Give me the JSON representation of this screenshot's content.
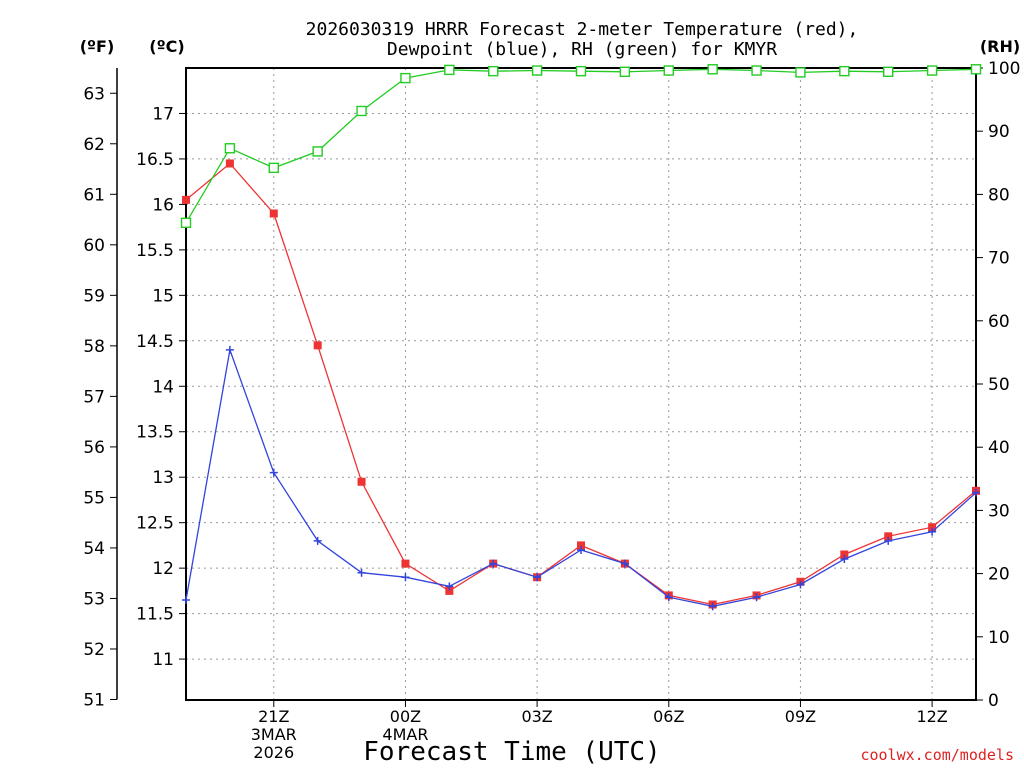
{
  "chart_data": {
    "type": "line",
    "title_lines": [
      "2026030319 HRRR Forecast 2-meter Temperature (red),",
      "Dewpoint (blue), RH (green) for KMYR"
    ],
    "xlabel": "Forecast Time (UTC)",
    "left_inner_unit": "(ºC)",
    "left_outer_unit": "(ºF)",
    "right_unit": "(RH)",
    "watermark": "coolwx.com/models",
    "x_hours": [
      19,
      20,
      21,
      22,
      23,
      24,
      25,
      26,
      27,
      28,
      29,
      30,
      31,
      32,
      33,
      34,
      35,
      36,
      37
    ],
    "x_range": [
      19,
      37
    ],
    "x_ticks": [
      {
        "hour": 21,
        "label": "21Z",
        "sub1": "3MAR",
        "sub2": "2026"
      },
      {
        "hour": 24,
        "label": "00Z",
        "sub1": "4MAR",
        "sub2": ""
      },
      {
        "hour": 27,
        "label": "03Z",
        "sub1": "",
        "sub2": ""
      },
      {
        "hour": 30,
        "label": "06Z",
        "sub1": "",
        "sub2": ""
      },
      {
        "hour": 33,
        "label": "09Z",
        "sub1": "",
        "sub2": ""
      },
      {
        "hour": 36,
        "label": "12Z",
        "sub1": "",
        "sub2": ""
      }
    ],
    "celsius_range": [
      10.55,
      17.5
    ],
    "celsius_ticks": [
      "11",
      "11.5",
      "12",
      "12.5",
      "13",
      "13.5",
      "14",
      "14.5",
      "15",
      "15.5",
      "16",
      "16.5",
      "17"
    ],
    "fahrenheit_ticks": [
      "51",
      "52",
      "53",
      "54",
      "55",
      "56",
      "57",
      "58",
      "59",
      "60",
      "61",
      "62",
      "63"
    ],
    "rh_range": [
      0,
      100
    ],
    "rh_ticks": [
      "0",
      "10",
      "20",
      "30",
      "40",
      "50",
      "60",
      "70",
      "80",
      "90",
      "100"
    ],
    "grid": true,
    "series": [
      {
        "name": "Temperature",
        "color": "#ee3333",
        "marker": "filled-square",
        "axis": "celsius",
        "values": [
          16.05,
          16.45,
          15.9,
          14.45,
          12.95,
          12.05,
          11.75,
          12.05,
          11.9,
          12.25,
          12.05,
          11.7,
          11.6,
          11.7,
          11.85,
          12.15,
          12.35,
          12.45,
          12.85
        ]
      },
      {
        "name": "Dewpoint",
        "color": "#3344dd",
        "marker": "plus",
        "axis": "celsius",
        "values": [
          11.65,
          14.4,
          13.05,
          12.3,
          11.95,
          11.9,
          11.8,
          12.05,
          11.9,
          12.2,
          12.05,
          11.68,
          11.58,
          11.68,
          11.82,
          12.1,
          12.3,
          12.4,
          12.83
        ]
      },
      {
        "name": "RH",
        "color": "#22cc22",
        "marker": "open-square",
        "axis": "rh",
        "values": [
          75.5,
          87.3,
          84.2,
          86.8,
          93.2,
          98.4,
          99.7,
          99.5,
          99.6,
          99.5,
          99.4,
          99.6,
          99.8,
          99.6,
          99.3,
          99.5,
          99.4,
          99.6,
          99.8
        ]
      }
    ]
  }
}
